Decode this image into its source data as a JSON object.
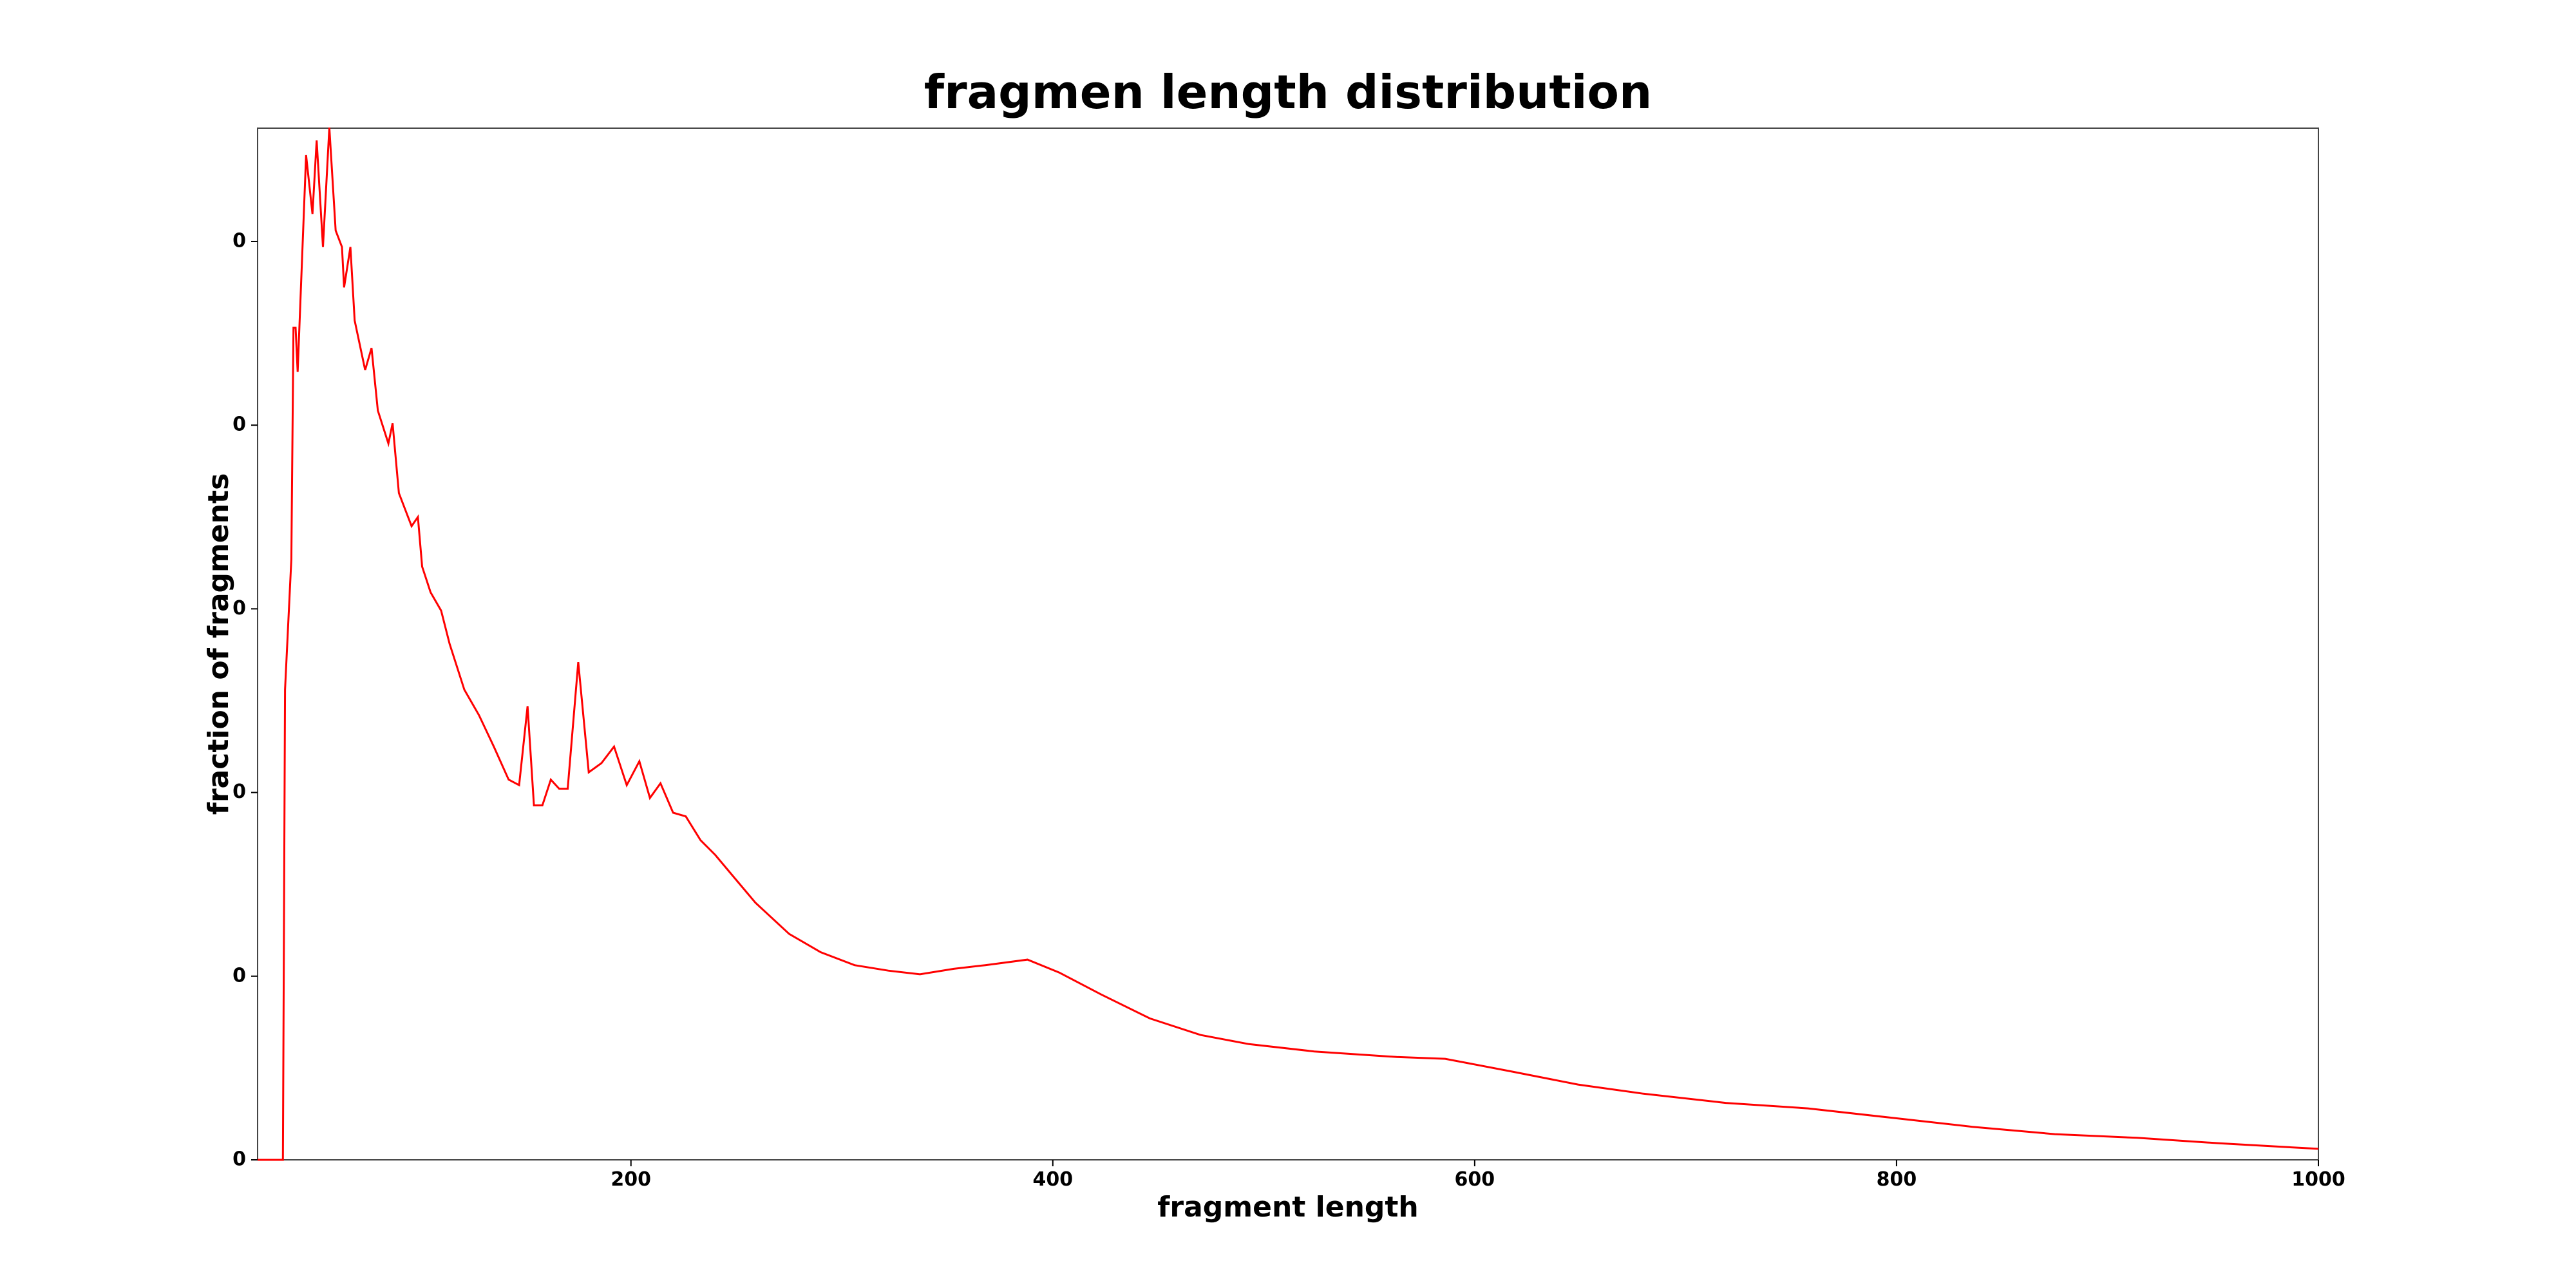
{
  "chart_data": {
    "type": "line",
    "title": "fragmen length distribution",
    "x_label": "fragment length",
    "y_label": "fraction of fragments",
    "color": "#ff0000",
    "x": [
      23,
      35,
      36,
      39,
      40,
      41,
      42,
      46,
      49,
      51,
      54,
      57,
      60,
      63,
      64,
      67,
      69,
      74,
      77,
      80,
      85,
      87,
      90,
      96,
      99,
      101,
      105,
      110,
      114,
      121,
      128,
      135,
      142,
      147,
      151,
      154,
      158,
      162,
      166,
      170,
      175,
      180,
      186,
      192,
      198,
      204,
      209,
      214,
      220,
      226,
      233,
      240,
      248,
      259,
      275,
      290,
      306,
      322,
      337,
      353,
      368,
      388,
      403,
      423,
      446,
      470,
      493,
      524,
      563,
      586,
      618,
      649,
      680,
      719,
      758,
      797,
      836,
      875,
      914,
      953,
      1000
    ],
    "values": [
      0,
      0,
      0.00256,
      0.00327,
      0.00453,
      0.00453,
      0.00429,
      0.00547,
      0.00515,
      0.00555,
      0.00497,
      0.00562,
      0.00506,
      0.00497,
      0.00475,
      0.00497,
      0.00457,
      0.0043,
      0.00442,
      0.00408,
      0.0039,
      0.00401,
      0.00363,
      0.00345,
      0.0035,
      0.00323,
      0.00309,
      0.00299,
      0.00281,
      0.00256,
      0.00242,
      0.00225,
      0.00207,
      0.00204,
      0.00247,
      0.00193,
      0.00193,
      0.00207,
      0.00202,
      0.00202,
      0.00271,
      0.00211,
      0.00216,
      0.00225,
      0.00204,
      0.00217,
      0.00197,
      0.00205,
      0.00189,
      0.00187,
      0.00174,
      0.00166,
      0.00155,
      0.0014,
      0.00123,
      0.00113,
      0.00106,
      0.00103,
      0.00101,
      0.00104,
      0.00106,
      0.00109,
      0.00102,
      0.0009,
      0.00077,
      0.00068,
      0.00063,
      0.00059,
      0.00056,
      0.00055,
      0.00048,
      0.00041,
      0.00036,
      0.00031,
      0.00028,
      0.00023,
      0.00018,
      0.00014,
      0.00012,
      9e-05,
      6e-05
    ],
    "xlim": [
      23,
      1000
    ],
    "ylim": [
      0,
      0.005617
    ],
    "xticks": [
      200,
      400,
      600,
      800,
      1000
    ],
    "yticks": [
      0,
      {
        "value": 0.001,
        "label": "0"
      },
      {
        "value": 0.002,
        "label": "0"
      },
      {
        "value": 0.003,
        "label": "0"
      },
      {
        "value": 0.004,
        "label": "0"
      },
      {
        "value": 0.005,
        "label": "0"
      }
    ]
  }
}
